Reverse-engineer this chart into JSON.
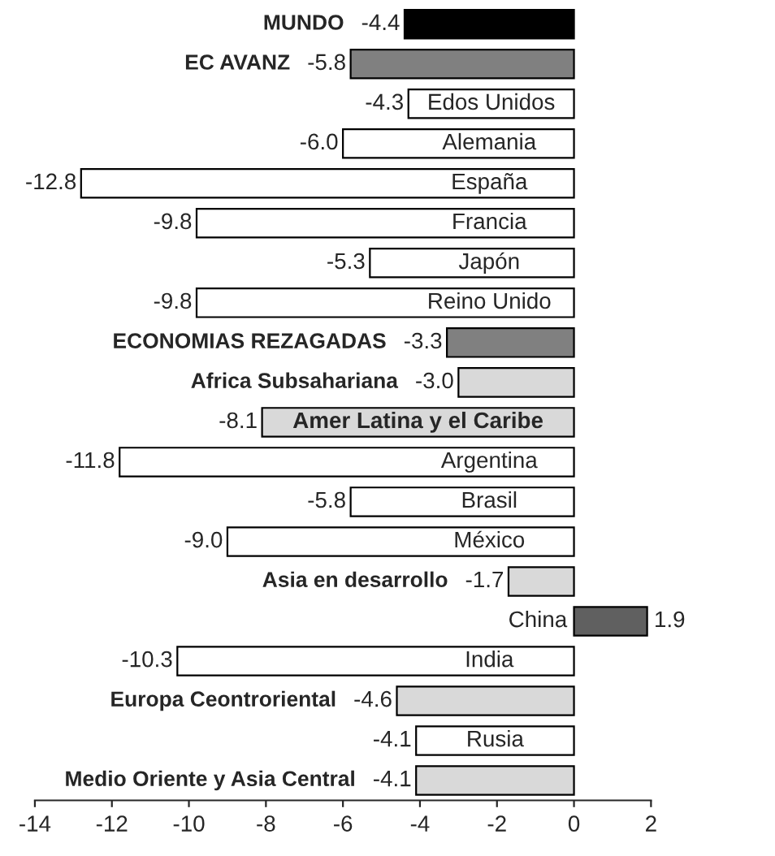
{
  "chart_data": {
    "type": "bar",
    "orientation": "horizontal",
    "categories": [
      "MUNDO",
      "EC AVANZ",
      "Edos Unidos",
      "Alemania",
      "España",
      "Francia",
      "Japón",
      "Reino Unido",
      "ECONOMIAS REZAGADAS",
      "Africa Subsahariana",
      "Amer Latina y el Caribe",
      "Argentina",
      "Brasil",
      "México",
      "Asia en desarrollo",
      "China",
      "India",
      "Europa Ceontroriental",
      "Rusia",
      "Medio Oriente y Asia Central"
    ],
    "values": [
      -4.4,
      -5.8,
      -4.3,
      -6.0,
      -12.8,
      -9.8,
      -5.3,
      -9.8,
      -3.3,
      -3.0,
      -8.1,
      -11.8,
      -5.8,
      -9.0,
      -1.7,
      1.9,
      -10.3,
      -4.6,
      -4.1,
      -4.1
    ],
    "value_labels": [
      "-4.4",
      "-5.8",
      "-4.3",
      "-6.0",
      "-12.8",
      "-9.8",
      "-5.3",
      "-9.8",
      "-3.3",
      "-3.0",
      "-8.1",
      "-11.8",
      "-5.8",
      "-9.0",
      "-1.7",
      "1.9",
      "-10.3",
      "-4.6",
      "-4.1",
      "-4.1"
    ],
    "colors": [
      "#000000",
      "#808080",
      "#ffffff",
      "#ffffff",
      "#ffffff",
      "#ffffff",
      "#ffffff",
      "#ffffff",
      "#808080",
      "#d9d9d9",
      "#d9d9d9",
      "#ffffff",
      "#ffffff",
      "#ffffff",
      "#d9d9d9",
      "#606060",
      "#ffffff",
      "#d9d9d9",
      "#ffffff",
      "#d9d9d9"
    ],
    "xlim": [
      -14,
      2
    ],
    "xticks": [
      -14,
      -12,
      -10,
      -8,
      -6,
      -4,
      -2,
      0,
      2
    ],
    "tick_labels": "x",
    "grid": false,
    "legend": false
  }
}
